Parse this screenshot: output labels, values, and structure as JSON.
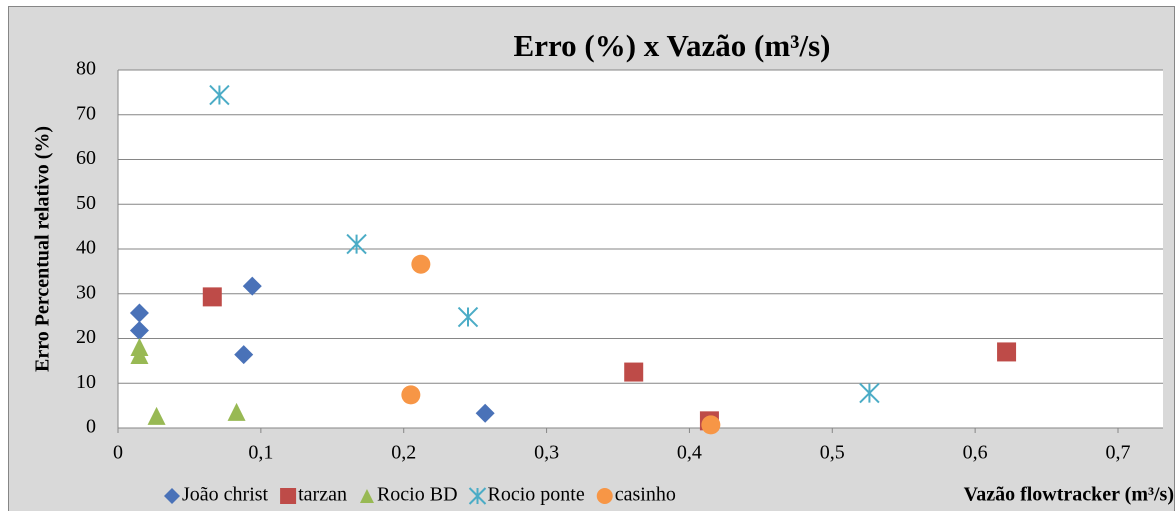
{
  "chart_data": {
    "type": "scatter",
    "title": "Erro (%) x Vazão (m³/s)",
    "x_label": "Vazão flowtracker (m³/s)",
    "y_label": "Erro Percentual relativo (%)",
    "xlim": [
      0,
      0.7
    ],
    "xticks": [
      0,
      {
        "value": 0.1,
        "label": "0,1"
      },
      {
        "value": 0.2,
        "label": "0,2"
      },
      {
        "value": 0.3,
        "label": "0,3"
      },
      {
        "value": 0.4,
        "label": "0,4"
      },
      {
        "value": 0.5,
        "label": "0,5"
      },
      {
        "value": 0.6,
        "label": "0,6"
      },
      {
        "value": 0.7,
        "label": "0,7"
      }
    ],
    "ylim": [
      0,
      80
    ],
    "yticks": [
      0,
      10,
      20,
      30,
      40,
      50,
      60,
      70,
      80
    ],
    "grid": true,
    "legend": "bottom",
    "series": [
      {
        "name": "João christ",
        "color": "#4a72b8",
        "marker": "diamond",
        "x": [
          0.015,
          0.015,
          0.094,
          0.088,
          0.257
        ],
        "values": [
          25.7,
          21.8,
          31.7,
          16.4,
          3.3
        ]
      },
      {
        "name": "tarzan",
        "color": "#be4b48",
        "marker": "square",
        "x": [
          0.066,
          0.361,
          0.414,
          0.622
        ],
        "values": [
          29.3,
          12.5,
          1.6,
          17.0
        ]
      },
      {
        "name": "Rocio BD",
        "color": "#98b954",
        "marker": "triangle",
        "x": [
          0.015,
          0.015,
          0.027,
          0.083
        ],
        "values": [
          18.1,
          16.3,
          2.7,
          3.6
        ]
      },
      {
        "name": "Rocio ponte",
        "color": "#4bacc6",
        "marker": "asterisk",
        "x": [
          0.071,
          0.167,
          0.245,
          0.526
        ],
        "values": [
          74.4,
          41.1,
          24.8,
          7.8
        ]
      },
      {
        "name": "casinho",
        "color": "#f79646",
        "marker": "circle",
        "x": [
          0.212,
          0.205,
          0.415
        ],
        "values": [
          36.6,
          7.4,
          0.7
        ]
      }
    ]
  }
}
